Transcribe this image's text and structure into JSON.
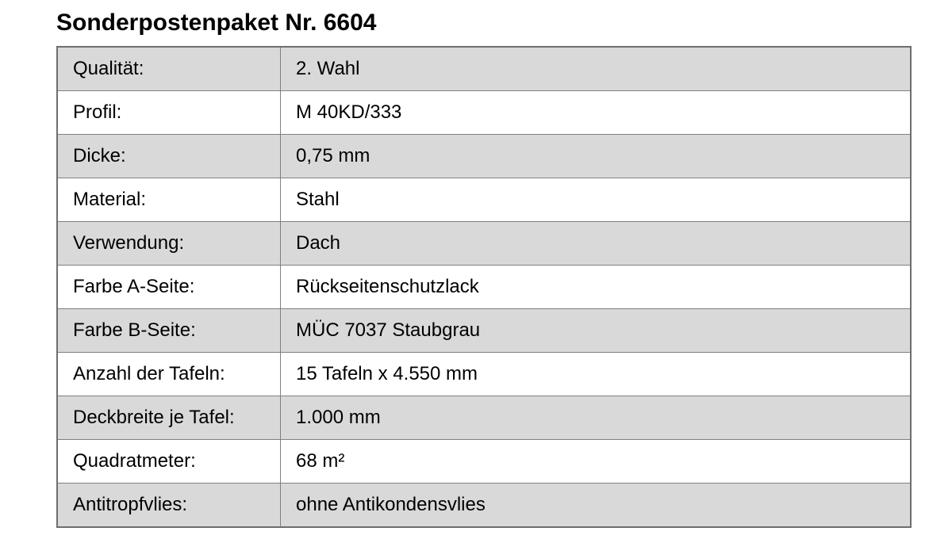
{
  "title": "Sonderpostenpaket Nr. 6604",
  "table": {
    "rows": [
      {
        "label": "Qualität:",
        "value": "2. Wahl"
      },
      {
        "label": "Profil:",
        "value": "M 40KD/333"
      },
      {
        "label": "Dicke:",
        "value": "0,75 mm"
      },
      {
        "label": "Material:",
        "value": "Stahl"
      },
      {
        "label": "Verwendung:",
        "value": "Dach"
      },
      {
        "label": "Farbe A-Seite:",
        "value": "Rückseitenschutzlack"
      },
      {
        "label": "Farbe B-Seite:",
        "value": "MÜC 7037 Staubgrau"
      },
      {
        "label": "Anzahl der Tafeln:",
        "value": "15 Tafeln x 4.550 mm"
      },
      {
        "label": "Deckbreite je Tafel:",
        "value": "1.000 mm"
      },
      {
        "label": "Quadratmeter:",
        "value": "68 m²"
      },
      {
        "label": "Antitropfvlies:",
        "value": "ohne Antikondensvlies"
      }
    ]
  },
  "colors": {
    "row_shade": "#d9d9d9",
    "border": "#808080",
    "outer_border": "#6e6e6e",
    "text": "#000000",
    "background": "#ffffff"
  }
}
